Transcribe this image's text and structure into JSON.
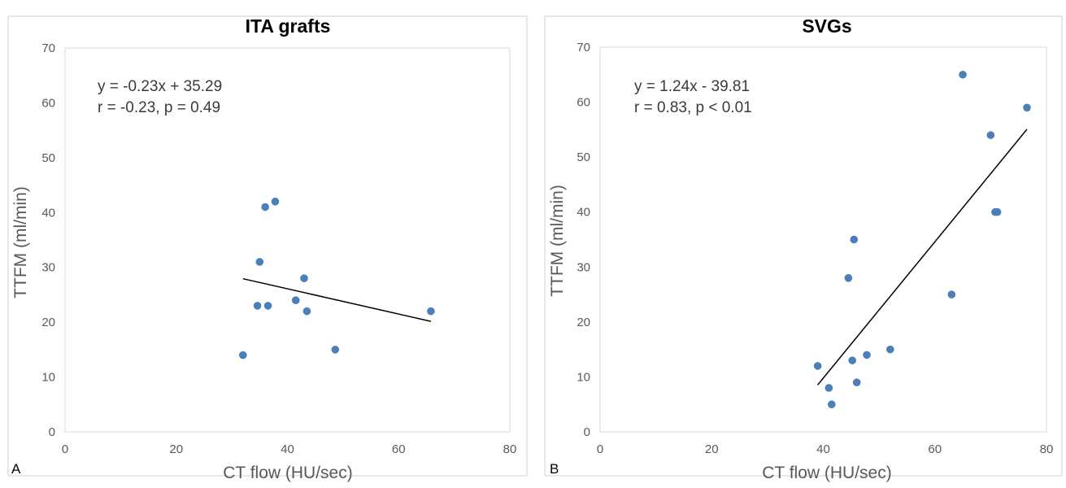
{
  "chart_data": [
    {
      "type": "scatter",
      "panel": "A",
      "title": "ITA grafts",
      "xlabel": "CT flow (HU/sec)",
      "ylabel": "TTFM (ml/min)",
      "xlim": [
        0,
        80
      ],
      "ylim": [
        0,
        70
      ],
      "xticks": [
        0,
        20,
        40,
        60,
        80
      ],
      "yticks": [
        0,
        10,
        20,
        30,
        40,
        50,
        60,
        70
      ],
      "grid": false,
      "annotations": [
        "y = -0.23x + 35.29",
        "r = -0.23, p = 0.49"
      ],
      "trendline": {
        "slope": -0.23,
        "intercept": 35.29,
        "x_range": [
          32,
          65.8
        ]
      },
      "marker_color": "#4a7fb8",
      "series": [
        {
          "x": [
            32,
            34.6,
            35,
            36,
            36.5,
            37.8,
            41.5,
            43,
            43.5,
            48.6,
            65.8
          ],
          "y": [
            14,
            23,
            31,
            41,
            23,
            42,
            24,
            28,
            22,
            15,
            22
          ]
        }
      ]
    },
    {
      "type": "scatter",
      "panel": "B",
      "title": "SVGs",
      "xlabel": "CT flow (HU/sec)",
      "ylabel": "TTFM (ml/min)",
      "xlim": [
        0,
        80
      ],
      "ylim": [
        0,
        70
      ],
      "xticks": [
        0,
        20,
        40,
        60,
        80
      ],
      "yticks": [
        0,
        10,
        20,
        30,
        40,
        50,
        60,
        70
      ],
      "grid": false,
      "annotations": [
        "y = 1.24x - 39.81",
        "r = 0.83, p < 0.01"
      ],
      "trendline": {
        "slope": 1.24,
        "intercept": -39.81,
        "x_range": [
          39,
          76.5
        ]
      },
      "marker_color": "#4a7fb8",
      "series": [
        {
          "x": [
            39,
            41,
            41.5,
            44.5,
            45.2,
            45.5,
            46,
            47.8,
            52,
            63,
            65,
            70,
            70.8,
            71.2,
            76.5
          ],
          "y": [
            12,
            8,
            5,
            28,
            13,
            35,
            9,
            14,
            15,
            25,
            65,
            54,
            40,
            40,
            59
          ]
        }
      ]
    }
  ]
}
